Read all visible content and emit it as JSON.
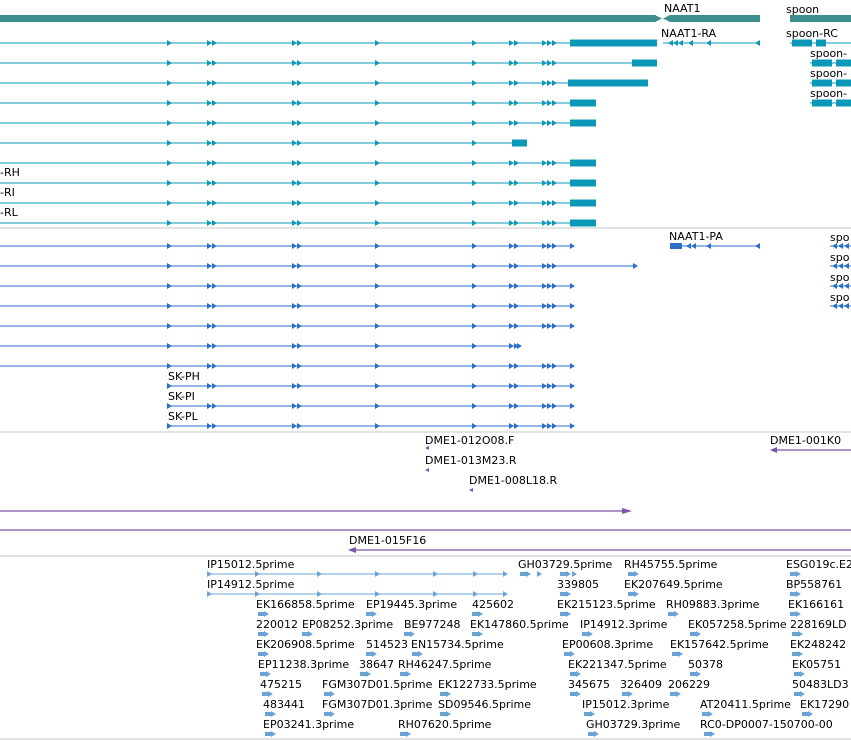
{
  "colors": {
    "gene": "#3d8f8f",
    "transcript": "#0b98b8",
    "protein": "#2a6fc9",
    "clone": "#7a55a8",
    "est": "#6aa3d6",
    "separator": "#c8c8c8"
  },
  "genes": {
    "naat1": "NAAT1",
    "spoon": "spoon"
  },
  "transcripts": {
    "naat1_ra": "NAAT1-RA",
    "spoon_rc": "spoon-RC",
    "spoon_b": "spoon-",
    "spoon_c": "spoon-",
    "spoon_d": "spoon-",
    "rh": "-RH",
    "ri": "-RI",
    "rl": "-RL"
  },
  "proteins": {
    "naat1_pa": "NAAT1-PA",
    "sk_ph": "SK-PH",
    "sk_pi": "SK-PI",
    "sk_pl": "SK-PL",
    "spo1": "spo",
    "spo2": "spo",
    "spo3": "spo",
    "spo4": "spo"
  },
  "clones": {
    "c1": "DME1-012O08.F",
    "c2": "DME1-013M23.R",
    "c3": "DME1-008L18.R",
    "c4": "DME1-001K0",
    "c5": "DME1-015F16"
  },
  "ests": {
    "e01": "IP15012.5prime",
    "e02": "IP14912.5prime",
    "e03": "GH03729.5prime",
    "e04": "RH45755.5prime",
    "e05": "ESG019c.E2",
    "e06": "339805",
    "e07": "EK207649.5prime",
    "e08": "BP558761",
    "e09": "EK166858.5prime",
    "e10": "EP19445.3prime",
    "e11": "425602",
    "e12": "EK215123.5prime",
    "e13": "RH09883.3prime",
    "e14": "EK166161",
    "e15": "220012",
    "e16": "EP08252.3prime",
    "e17": "BE977248",
    "e18": "EK147860.5prime",
    "e19": "IP14912.3prime",
    "e20": "EK057258.5prime",
    "e21": "228169LD",
    "e22": "EK206908.5prime",
    "e23": "514523",
    "e24": "EN15734.5prime",
    "e25": "EP00608.3prime",
    "e26": "EK157642.5prime",
    "e27": "EK248242",
    "e28": "EP11238.3prime",
    "e29": "38647",
    "e30": "RH46247.5prime",
    "e31": "EK221347.5prime",
    "e32": "50378",
    "e33": "EK05751",
    "e34": "475215",
    "e35": "FGM307D01.5prime",
    "e36": "EK122733.5prime",
    "e37": "345675",
    "e38": "326409",
    "e39": "206229",
    "e40": "50483LD3",
    "e41": "483441",
    "e42": "FGM307D01.3prime",
    "e43": "SD09546.5prime",
    "e44": "IP15012.3prime",
    "e45": "AT20411.5prime",
    "e46": "EK17290",
    "e47": "EP03241.3prime",
    "e48": "RH07620.5prime",
    "e49": "GH03729.3prime",
    "e50": "RC0-DP0007-150700-00"
  }
}
